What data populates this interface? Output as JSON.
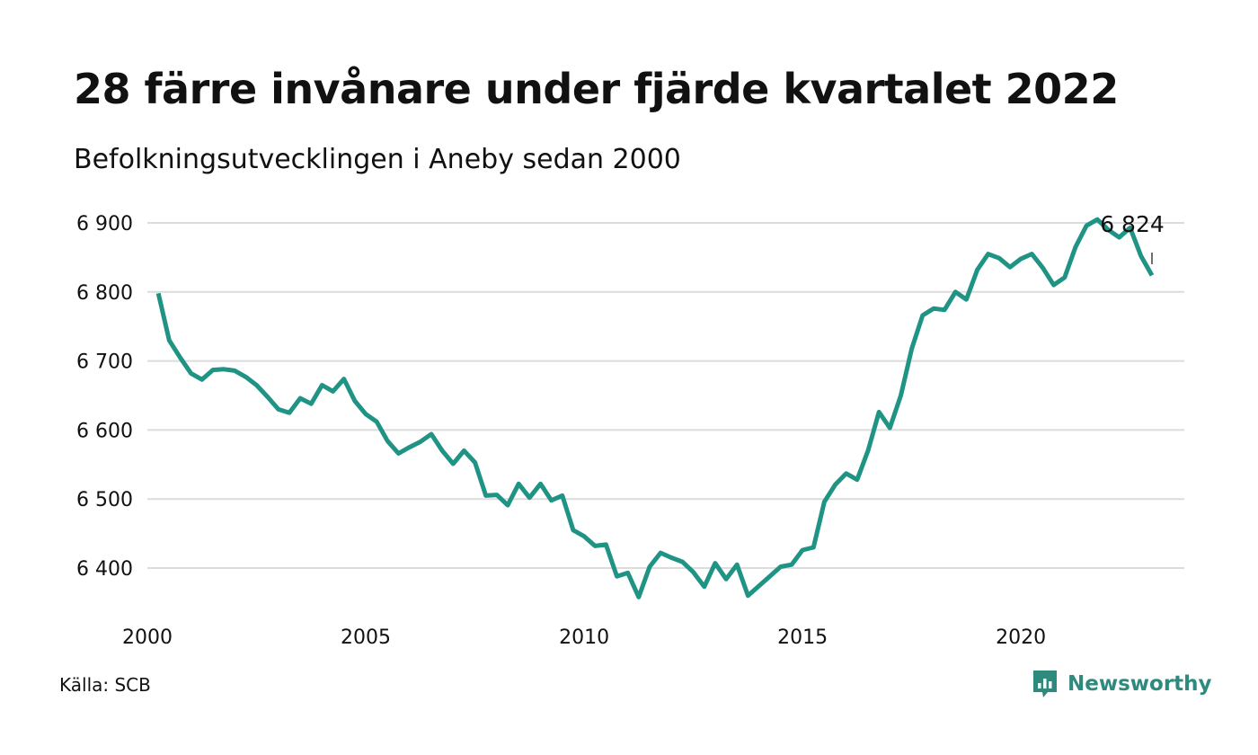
{
  "header": {
    "title": "28 färre invånare under fjärde kvartalet 2022",
    "subtitle": "Befolkningsutvecklingen i Aneby sedan 2000"
  },
  "footer": {
    "source": "Källa: SCB",
    "brand": "Newsworthy",
    "brand_icon": "chart-bubble-icon"
  },
  "colors": {
    "line": "#1f9384",
    "grid": "#dcdcdc",
    "brand": "#2d8a7d"
  },
  "chart_data": {
    "type": "line",
    "title": "28 färre invånare under fjärde kvartalet 2022",
    "subtitle": "Befolkningsutvecklingen i Aneby sedan 2000",
    "xlabel": "",
    "ylabel": "",
    "x_ticks": [
      2000,
      2005,
      2010,
      2015,
      2020
    ],
    "y_ticks": [
      6400,
      6500,
      6600,
      6700,
      6800,
      6900
    ],
    "y_tick_labels": [
      "6 400",
      "6 500",
      "6 600",
      "6 700",
      "6 800",
      "6 900"
    ],
    "x_tick_labels": [
      "2000",
      "2005",
      "2010",
      "2015",
      "2020"
    ],
    "xlim": [
      2000,
      2023
    ],
    "ylim": [
      6340,
      6920
    ],
    "grid": true,
    "last_value_label": "6 824",
    "series": [
      {
        "values": [
          [
            2000.25,
            6798
          ],
          [
            2000.5,
            6730
          ],
          [
            2000.75,
            6705
          ],
          [
            2001.0,
            6682
          ],
          [
            2001.25,
            6673
          ],
          [
            2001.5,
            6687
          ],
          [
            2001.75,
            6688
          ],
          [
            2002.0,
            6686
          ],
          [
            2002.25,
            6677
          ],
          [
            2002.5,
            6665
          ],
          [
            2002.75,
            6648
          ],
          [
            2003.0,
            6630
          ],
          [
            2003.25,
            6625
          ],
          [
            2003.5,
            6646
          ],
          [
            2003.75,
            6638
          ],
          [
            2004.0,
            6665
          ],
          [
            2004.25,
            6656
          ],
          [
            2004.5,
            6674
          ],
          [
            2004.75,
            6642
          ],
          [
            2005.0,
            6623
          ],
          [
            2005.25,
            6612
          ],
          [
            2005.5,
            6584
          ],
          [
            2005.75,
            6566
          ],
          [
            2006.0,
            6575
          ],
          [
            2006.25,
            6583
          ],
          [
            2006.5,
            6594
          ],
          [
            2006.75,
            6570
          ],
          [
            2007.0,
            6551
          ],
          [
            2007.25,
            6570
          ],
          [
            2007.5,
            6553
          ],
          [
            2007.75,
            6505
          ],
          [
            2008.0,
            6506
          ],
          [
            2008.25,
            6491
          ],
          [
            2008.5,
            6522
          ],
          [
            2008.75,
            6502
          ],
          [
            2009.0,
            6522
          ],
          [
            2009.25,
            6498
          ],
          [
            2009.5,
            6505
          ],
          [
            2009.75,
            6455
          ],
          [
            2010.0,
            6446
          ],
          [
            2010.25,
            6432
          ],
          [
            2010.5,
            6434
          ],
          [
            2010.75,
            6388
          ],
          [
            2011.0,
            6393
          ],
          [
            2011.25,
            6358
          ],
          [
            2011.5,
            6402
          ],
          [
            2011.75,
            6422
          ],
          [
            2012.0,
            6415
          ],
          [
            2012.25,
            6409
          ],
          [
            2012.5,
            6394
          ],
          [
            2012.75,
            6373
          ],
          [
            2013.0,
            6407
          ],
          [
            2013.25,
            6384
          ],
          [
            2013.5,
            6405
          ],
          [
            2013.75,
            6360
          ],
          [
            2014.0,
            6374
          ],
          [
            2014.25,
            6388
          ],
          [
            2014.5,
            6402
          ],
          [
            2014.75,
            6405
          ],
          [
            2015.0,
            6426
          ],
          [
            2015.25,
            6430
          ],
          [
            2015.5,
            6496
          ],
          [
            2015.75,
            6521
          ],
          [
            2016.0,
            6537
          ],
          [
            2016.25,
            6528
          ],
          [
            2016.5,
            6570
          ],
          [
            2016.75,
            6626
          ],
          [
            2017.0,
            6603
          ],
          [
            2017.25,
            6650
          ],
          [
            2017.5,
            6718
          ],
          [
            2017.75,
            6766
          ],
          [
            2018.0,
            6776
          ],
          [
            2018.25,
            6774
          ],
          [
            2018.5,
            6800
          ],
          [
            2018.75,
            6789
          ],
          [
            2019.0,
            6832
          ],
          [
            2019.25,
            6855
          ],
          [
            2019.5,
            6849
          ],
          [
            2019.75,
            6836
          ],
          [
            2020.0,
            6848
          ],
          [
            2020.25,
            6855
          ],
          [
            2020.5,
            6835
          ],
          [
            2020.75,
            6810
          ],
          [
            2021.0,
            6821
          ],
          [
            2021.25,
            6865
          ],
          [
            2021.5,
            6896
          ],
          [
            2021.75,
            6905
          ],
          [
            2022.0,
            6890
          ],
          [
            2022.25,
            6879
          ],
          [
            2022.5,
            6893
          ],
          [
            2022.75,
            6852
          ],
          [
            2023.0,
            6824
          ]
        ]
      }
    ]
  }
}
